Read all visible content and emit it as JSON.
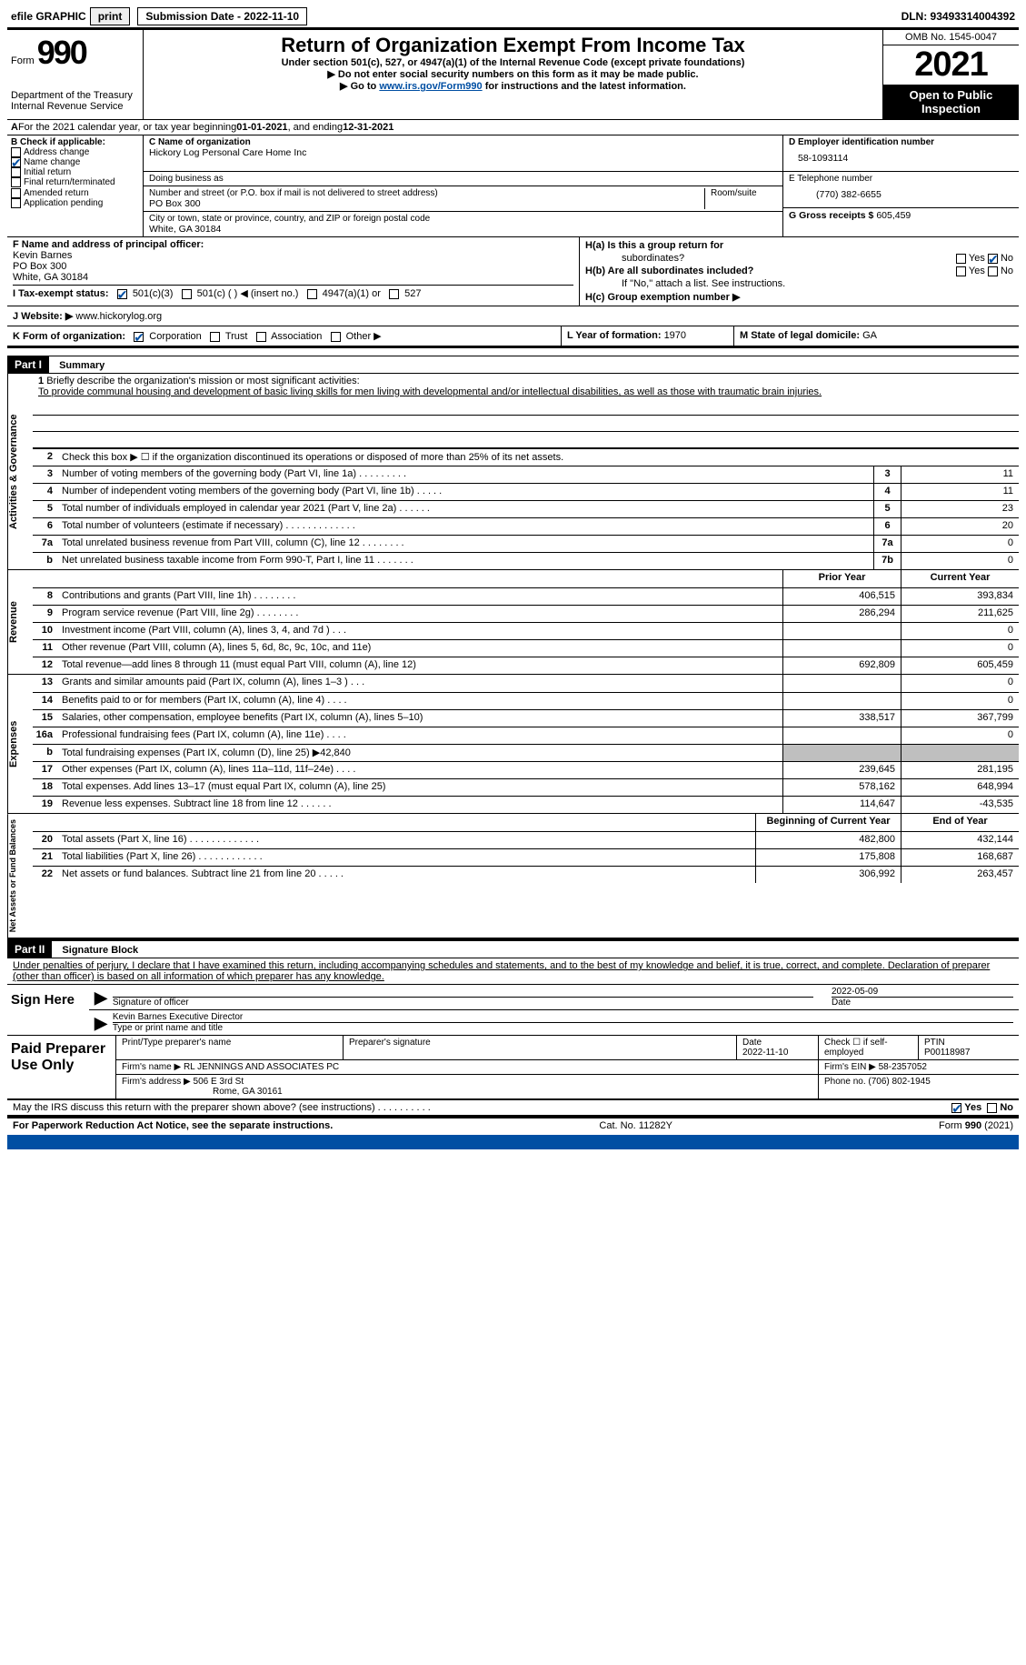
{
  "meta": {
    "efile_prefix": "efile GRAPHIC",
    "print_btn": "print",
    "submission_label": "Submission Date - 2022-11-10",
    "dln_label": "DLN: 93493314004392"
  },
  "header": {
    "form_word": "Form",
    "form_number": "990",
    "dept": "Department of the Treasury",
    "irs": "Internal Revenue Service",
    "title": "Return of Organization Exempt From Income Tax",
    "sub1": "Under section 501(c), 527, or 4947(a)(1) of the Internal Revenue Code (except private foundations)",
    "sub2": "▶ Do not enter social security numbers on this form as it may be made public.",
    "sub3_pre": "▶ Go to ",
    "sub3_link": "www.irs.gov/Form990",
    "sub3_post": " for instructions and the latest information.",
    "omb": "OMB No. 1545-0047",
    "year": "2021",
    "inspection1": "Open to Public",
    "inspection2": "Inspection"
  },
  "row_a": {
    "a_bold": "A",
    "text_pre": "For the 2021 calendar year, or tax year beginning ",
    "begin": "01-01-2021",
    "mid": "  , and ending ",
    "end": "12-31-2021"
  },
  "box_b": {
    "label": "B Check if applicable:",
    "items": [
      {
        "txt": "Address change",
        "checked": false
      },
      {
        "txt": "Name change",
        "checked": true
      },
      {
        "txt": "Initial return",
        "checked": false
      },
      {
        "txt": "Final return/terminated",
        "checked": false
      },
      {
        "txt": "Amended return",
        "checked": false
      },
      {
        "txt": "Application pending",
        "checked": false
      }
    ]
  },
  "box_c": {
    "name_label": "C Name of organization",
    "name": "Hickory Log Personal Care Home Inc",
    "dba_label": "Doing business as",
    "dba": "",
    "addr_label": "Number and street (or P.O. box if mail is not delivered to street address)",
    "room_label": "Room/suite",
    "addr": "PO Box 300",
    "city_label": "City or town, state or province, country, and ZIP or foreign postal code",
    "city": "White, GA  30184"
  },
  "box_d": {
    "ein_label": "D Employer identification number",
    "ein": "58-1093114",
    "phone_label": "E Telephone number",
    "phone": "(770) 382-6655",
    "gross_label": "G Gross receipts $",
    "gross": "605,459"
  },
  "box_f": {
    "label": "F Name and address of principal officer:",
    "name": "Kevin Barnes",
    "addr1": "PO Box 300",
    "addr2": "White, GA  30184"
  },
  "box_h": {
    "ha_label": "H(a)  Is this a group return for",
    "ha_label2": "subordinates?",
    "ha_no_checked": true,
    "hb_label": "H(b)  Are all subordinates included?",
    "hb_note": "If \"No,\" attach a list. See instructions.",
    "hc_label": "H(c)  Group exemption number ▶"
  },
  "row_i": {
    "label": "I   Tax-exempt status:",
    "opts": [
      {
        "txt": "501(c)(3)",
        "checked": true
      },
      {
        "txt": "501(c) (  ) ◀ (insert no.)",
        "checked": false
      },
      {
        "txt": "4947(a)(1) or",
        "checked": false
      },
      {
        "txt": "527",
        "checked": false
      }
    ]
  },
  "row_j": {
    "label": "J   Website: ▶",
    "value": "www.hickorylog.org"
  },
  "row_k": {
    "label": "K Form of organization:",
    "opts": [
      {
        "txt": "Corporation",
        "checked": true
      },
      {
        "txt": "Trust",
        "checked": false
      },
      {
        "txt": "Association",
        "checked": false
      },
      {
        "txt": "Other ▶",
        "checked": false
      }
    ],
    "l_label": "L Year of formation: ",
    "l_val": "1970",
    "m_label": "M State of legal domicile: ",
    "m_val": "GA"
  },
  "parts": {
    "p1_bar": "Part I",
    "p1_title": "Summary",
    "p2_bar": "Part II",
    "p2_title": "Signature Block"
  },
  "tabs": {
    "t1": "Activities & Governance",
    "t2": "Revenue",
    "t3": "Expenses",
    "t4": "Net Assets or Fund Balances"
  },
  "mission": {
    "q1_num": "1",
    "q1_label": "Briefly describe the organization's mission or most significant activities:",
    "q1_text": "To provide communal housing and development of basic living skills for men living with developmental and/or intellectual disabilities, as well as those with traumatic brain injuries."
  },
  "gov_rows": [
    {
      "n": "2",
      "desc": "Check this box ▶ ☐ if the organization discontinued its operations or disposed of more than 25% of its net assets.",
      "box": "",
      "val": ""
    },
    {
      "n": "3",
      "desc": "Number of voting members of the governing body (Part VI, line 1a)   .    .    .    .    .    .    .    .    .",
      "box": "3",
      "val": "11"
    },
    {
      "n": "4",
      "desc": "Number of independent voting members of the governing body (Part VI, line 1b)   .    .    .    .    .",
      "box": "4",
      "val": "11"
    },
    {
      "n": "5",
      "desc": "Total number of individuals employed in calendar year 2021 (Part V, line 2a)   .    .    .    .    .    .",
      "box": "5",
      "val": "23"
    },
    {
      "n": "6",
      "desc": "Total number of volunteers (estimate if necessary)   .    .    .    .    .    .    .    .    .    .    .    .    .",
      "box": "6",
      "val": "20"
    },
    {
      "n": "7a",
      "desc": "Total unrelated business revenue from Part VIII, column (C), line 12   .    .    .    .    .    .    .    .",
      "box": "7a",
      "val": "0"
    },
    {
      "n": "b",
      "desc": "Net unrelated business taxable income from Form 990-T, Part I, line 11   .    .    .    .    .    .    .",
      "box": "7b",
      "val": "0"
    }
  ],
  "rev_hdr": {
    "prior": "Prior Year",
    "current": "Current Year"
  },
  "rev_rows": [
    {
      "n": "8",
      "desc": "Contributions and grants (Part VIII, line 1h)   .    .    .    .    .    .    .    .",
      "prior": "406,515",
      "cur": "393,834"
    },
    {
      "n": "9",
      "desc": "Program service revenue (Part VIII, line 2g)   .    .    .    .    .    .    .    .",
      "prior": "286,294",
      "cur": "211,625"
    },
    {
      "n": "10",
      "desc": "Investment income (Part VIII, column (A), lines 3, 4, and 7d )   .    .    .",
      "prior": "",
      "cur": "0"
    },
    {
      "n": "11",
      "desc": "Other revenue (Part VIII, column (A), lines 5, 6d, 8c, 9c, 10c, and 11e)",
      "prior": "",
      "cur": "0"
    },
    {
      "n": "12",
      "desc": "Total revenue—add lines 8 through 11 (must equal Part VIII, column (A), line 12)",
      "prior": "692,809",
      "cur": "605,459"
    }
  ],
  "exp_rows": [
    {
      "n": "13",
      "desc": "Grants and similar amounts paid (Part IX, column (A), lines 1–3 )   .    .    .",
      "prior": "",
      "cur": "0"
    },
    {
      "n": "14",
      "desc": "Benefits paid to or for members (Part IX, column (A), line 4)   .    .    .    .",
      "prior": "",
      "cur": "0"
    },
    {
      "n": "15",
      "desc": "Salaries, other compensation, employee benefits (Part IX, column (A), lines 5–10)",
      "prior": "338,517",
      "cur": "367,799"
    },
    {
      "n": "16a",
      "desc": "Professional fundraising fees (Part IX, column (A), line 11e)   .    .    .    .",
      "prior": "",
      "cur": "0"
    },
    {
      "n": "b",
      "desc": "Total fundraising expenses (Part IX, column (D), line 25) ▶42,840",
      "prior": "GREY",
      "cur": "GREY"
    },
    {
      "n": "17",
      "desc": "Other expenses (Part IX, column (A), lines 11a–11d, 11f–24e)   .    .    .    .",
      "prior": "239,645",
      "cur": "281,195"
    },
    {
      "n": "18",
      "desc": "Total expenses. Add lines 13–17 (must equal Part IX, column (A), line 25)",
      "prior": "578,162",
      "cur": "648,994"
    },
    {
      "n": "19",
      "desc": "Revenue less expenses. Subtract line 18 from line 12   .    .    .    .    .    .",
      "prior": "114,647",
      "cur": "-43,535"
    }
  ],
  "net_hdr": {
    "prior": "Beginning of Current Year",
    "current": "End of Year"
  },
  "net_rows": [
    {
      "n": "20",
      "desc": "Total assets (Part X, line 16)   .    .    .    .    .    .    .    .    .    .    .    .    .",
      "prior": "482,800",
      "cur": "432,144"
    },
    {
      "n": "21",
      "desc": "Total liabilities (Part X, line 26)   .    .    .    .    .    .    .    .    .    .    .    .",
      "prior": "175,808",
      "cur": "168,687"
    },
    {
      "n": "22",
      "desc": "Net assets or fund balances. Subtract line 21 from line 20   .    .    .    .    .",
      "prior": "306,992",
      "cur": "263,457"
    }
  ],
  "sig": {
    "declaration": "Under penalties of perjury, I declare that I have examined this return, including accompanying schedules and statements, and to the best of my knowledge and belief, it is true, correct, and complete. Declaration of preparer (other than officer) is based on all information of which preparer has any knowledge.",
    "sign_here": "Sign Here",
    "sig_officer_label": "Signature of officer",
    "sig_date": "2022-05-09",
    "date_label": "Date",
    "printed_name": "Kevin Barnes  Executive Director",
    "printed_label": "Type or print name and title"
  },
  "prep": {
    "label": "Paid Preparer Use Only",
    "h_name": "Print/Type preparer's name",
    "h_sig": "Preparer's signature",
    "h_date_l": "Date",
    "h_date": "2022-11-10",
    "h_check": "Check ☐ if self-employed",
    "h_ptin_l": "PTIN",
    "h_ptin": "P00118987",
    "firm_name_l": "Firm's name      ▶",
    "firm_name": "RL JENNINGS AND ASSOCIATES PC",
    "firm_ein_l": "Firm's EIN ▶",
    "firm_ein": "58-2357052",
    "firm_addr_l": "Firm's address ▶",
    "firm_addr1": "506 E 3rd St",
    "firm_addr2": "Rome, GA  30161",
    "firm_phone_l": "Phone no.",
    "firm_phone": "(706) 802-1945"
  },
  "discuss": {
    "text": "May the IRS discuss this return with the preparer shown above? (see instructions)   .    .    .    .    .    .    .    .    .    .",
    "yes_checked": true
  },
  "footer": {
    "left": "For Paperwork Reduction Act Notice, see the separate instructions.",
    "mid": "Cat. No. 11282Y",
    "right": "Form 990 (2021)"
  },
  "yn": {
    "yes": "Yes",
    "no": "No"
  }
}
